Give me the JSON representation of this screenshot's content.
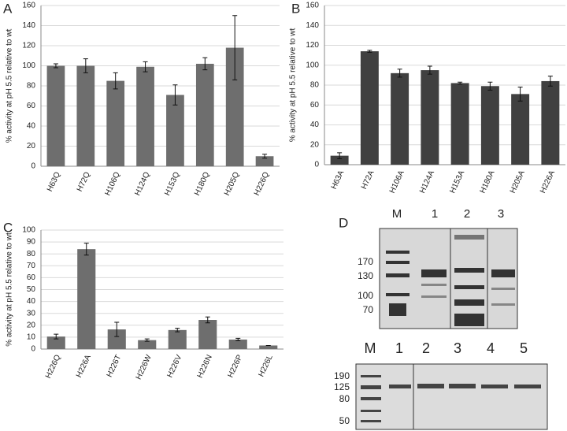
{
  "chart_data": [
    {
      "type": "bar",
      "panel": "A",
      "y_label": "% activity at pH 5.5 relative to wt",
      "color": "#6e6e6e",
      "grid": true,
      "categories": [
        "H63Q",
        "H72Q",
        "H106Q",
        "H124Q",
        "H153Q",
        "H180Q",
        "H205Q",
        "H226Q"
      ],
      "values": [
        100,
        100,
        85,
        99,
        71,
        102,
        118,
        10
      ],
      "errors": [
        2,
        7,
        8,
        5,
        10,
        6,
        32,
        2
      ],
      "ylim": [
        0,
        160
      ],
      "yticks": [
        0,
        20,
        40,
        60,
        80,
        100,
        120,
        140,
        160
      ]
    },
    {
      "type": "bar",
      "panel": "B",
      "y_label": "% activity at pH 5.5 relative to wt",
      "color": "#404040",
      "grid": true,
      "categories": [
        "H63A",
        "H72A",
        "H106A",
        "H124A",
        "H153A",
        "H180A",
        "H205A",
        "H226A"
      ],
      "values": [
        9,
        114,
        92,
        95,
        82,
        79,
        71,
        84
      ],
      "errors": [
        3,
        1,
        4,
        4,
        1,
        4,
        7,
        5
      ],
      "ylim": [
        0,
        160
      ],
      "yticks": [
        0,
        20,
        40,
        60,
        80,
        100,
        120,
        140,
        160
      ]
    },
    {
      "type": "bar",
      "panel": "C",
      "y_label": "% activity at pH 5.5 relative to wt",
      "color": "#6e6e6e",
      "grid": true,
      "categories": [
        "H226Q",
        "H226A",
        "H226T",
        "H226W",
        "H226V",
        "H226N",
        "H226P",
        "H226L"
      ],
      "values": [
        10.5,
        84,
        16.5,
        7.5,
        16,
        24.5,
        8,
        3
      ],
      "errors": [
        2,
        5,
        6,
        1,
        1.5,
        2.5,
        1,
        0
      ],
      "ylim": [
        0,
        100
      ],
      "yticks": [
        0,
        10,
        20,
        30,
        40,
        50,
        60,
        70,
        80,
        90,
        100
      ]
    }
  ],
  "gels": {
    "panel": "D",
    "top": {
      "lanes": [
        "M",
        "1",
        "2",
        "3"
      ],
      "markers": [
        "170",
        "130",
        "100",
        "70"
      ]
    },
    "bottom": {
      "lanes": [
        "M",
        "1",
        "2",
        "3",
        "4",
        "5"
      ],
      "markers": [
        "190",
        "125",
        "80",
        "50"
      ]
    }
  }
}
